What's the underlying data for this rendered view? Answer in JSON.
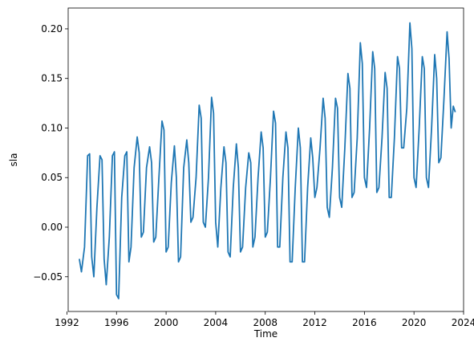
{
  "chart_data": {
    "type": "line",
    "title": "",
    "xlabel": "Time",
    "ylabel": "sla",
    "xlim": [
      1992.1,
      2024.0
    ],
    "ylim": [
      -0.085,
      0.221
    ],
    "x_ticks": [
      1992,
      1996,
      2000,
      2004,
      2008,
      2012,
      2016,
      2020,
      2024
    ],
    "x_tick_labels": [
      "1992",
      "1996",
      "2000",
      "2004",
      "2008",
      "2012",
      "2016",
      "2020",
      "2024"
    ],
    "y_ticks": [
      -0.05,
      0.0,
      0.05,
      0.1,
      0.15,
      0.2
    ],
    "y_tick_labels": [
      "−0.05",
      "0.00",
      "0.05",
      "0.10",
      "0.15",
      "0.20"
    ],
    "grid": false,
    "legend": "none",
    "series": [
      {
        "color": "#1f77b4",
        "x": [
          1993.0,
          1993.17,
          1993.42,
          1993.67,
          1993.83,
          1994.0,
          1994.17,
          1994.42,
          1994.67,
          1994.83,
          1995.0,
          1995.17,
          1995.42,
          1995.67,
          1995.83,
          1996.0,
          1996.17,
          1996.42,
          1996.67,
          1996.83,
          1997.0,
          1997.17,
          1997.42,
          1997.67,
          1997.83,
          1998.0,
          1998.17,
          1998.42,
          1998.67,
          1998.83,
          1999.0,
          1999.17,
          1999.42,
          1999.67,
          1999.83,
          2000.0,
          2000.17,
          2000.42,
          2000.67,
          2000.83,
          2001.0,
          2001.17,
          2001.42,
          2001.67,
          2001.83,
          2002.0,
          2002.17,
          2002.42,
          2002.67,
          2002.83,
          2003.0,
          2003.17,
          2003.42,
          2003.67,
          2003.83,
          2004.0,
          2004.17,
          2004.42,
          2004.67,
          2004.83,
          2005.0,
          2005.17,
          2005.42,
          2005.67,
          2005.83,
          2006.0,
          2006.17,
          2006.42,
          2006.67,
          2006.83,
          2007.0,
          2007.17,
          2007.42,
          2007.67,
          2007.83,
          2008.0,
          2008.17,
          2008.42,
          2008.67,
          2008.83,
          2009.0,
          2009.17,
          2009.42,
          2009.67,
          2009.83,
          2010.0,
          2010.17,
          2010.42,
          2010.67,
          2010.83,
          2011.0,
          2011.17,
          2011.42,
          2011.67,
          2011.83,
          2012.0,
          2012.17,
          2012.42,
          2012.67,
          2012.83,
          2013.0,
          2013.17,
          2013.42,
          2013.67,
          2013.83,
          2014.0,
          2014.17,
          2014.42,
          2014.67,
          2014.83,
          2015.0,
          2015.17,
          2015.42,
          2015.67,
          2015.83,
          2016.0,
          2016.17,
          2016.42,
          2016.67,
          2016.83,
          2017.0,
          2017.17,
          2017.42,
          2017.67,
          2017.83,
          2018.0,
          2018.17,
          2018.42,
          2018.67,
          2018.83,
          2019.0,
          2019.17,
          2019.42,
          2019.67,
          2019.83,
          2020.0,
          2020.17,
          2020.42,
          2020.67,
          2020.83,
          2021.0,
          2021.17,
          2021.42,
          2021.67,
          2021.83,
          2022.0,
          2022.17,
          2022.42,
          2022.67,
          2022.83,
          2023.0,
          2023.17,
          2023.33
        ],
        "y": [
          -0.032,
          -0.045,
          -0.02,
          0.072,
          0.074,
          -0.03,
          -0.05,
          0.02,
          0.072,
          0.068,
          -0.032,
          -0.058,
          -0.01,
          0.072,
          0.076,
          -0.068,
          -0.072,
          0.03,
          0.072,
          0.076,
          -0.035,
          -0.02,
          0.06,
          0.091,
          0.075,
          -0.01,
          -0.005,
          0.06,
          0.081,
          0.065,
          -0.015,
          -0.01,
          0.05,
          0.107,
          0.098,
          -0.025,
          -0.02,
          0.045,
          0.082,
          0.05,
          -0.035,
          -0.03,
          0.06,
          0.088,
          0.065,
          0.005,
          0.01,
          0.05,
          0.123,
          0.11,
          0.005,
          0.0,
          0.05,
          0.131,
          0.115,
          0.005,
          -0.02,
          0.04,
          0.081,
          0.065,
          -0.025,
          -0.03,
          0.04,
          0.084,
          0.06,
          -0.025,
          -0.02,
          0.04,
          0.075,
          0.065,
          -0.02,
          -0.01,
          0.05,
          0.096,
          0.08,
          -0.01,
          -0.005,
          0.05,
          0.117,
          0.105,
          -0.02,
          -0.02,
          0.05,
          0.096,
          0.08,
          -0.035,
          -0.035,
          0.04,
          0.1,
          0.08,
          -0.035,
          -0.035,
          0.04,
          0.09,
          0.07,
          0.03,
          0.04,
          0.08,
          0.13,
          0.11,
          0.02,
          0.01,
          0.06,
          0.13,
          0.12,
          0.03,
          0.02,
          0.08,
          0.155,
          0.14,
          0.03,
          0.035,
          0.09,
          0.186,
          0.165,
          0.05,
          0.04,
          0.1,
          0.177,
          0.16,
          0.035,
          0.04,
          0.09,
          0.156,
          0.14,
          0.03,
          0.03,
          0.09,
          0.172,
          0.16,
          0.08,
          0.08,
          0.12,
          0.206,
          0.18,
          0.05,
          0.04,
          0.1,
          0.172,
          0.16,
          0.05,
          0.04,
          0.1,
          0.174,
          0.15,
          0.065,
          0.07,
          0.13,
          0.197,
          0.17,
          0.1,
          0.122,
          0.116
        ]
      }
    ]
  }
}
